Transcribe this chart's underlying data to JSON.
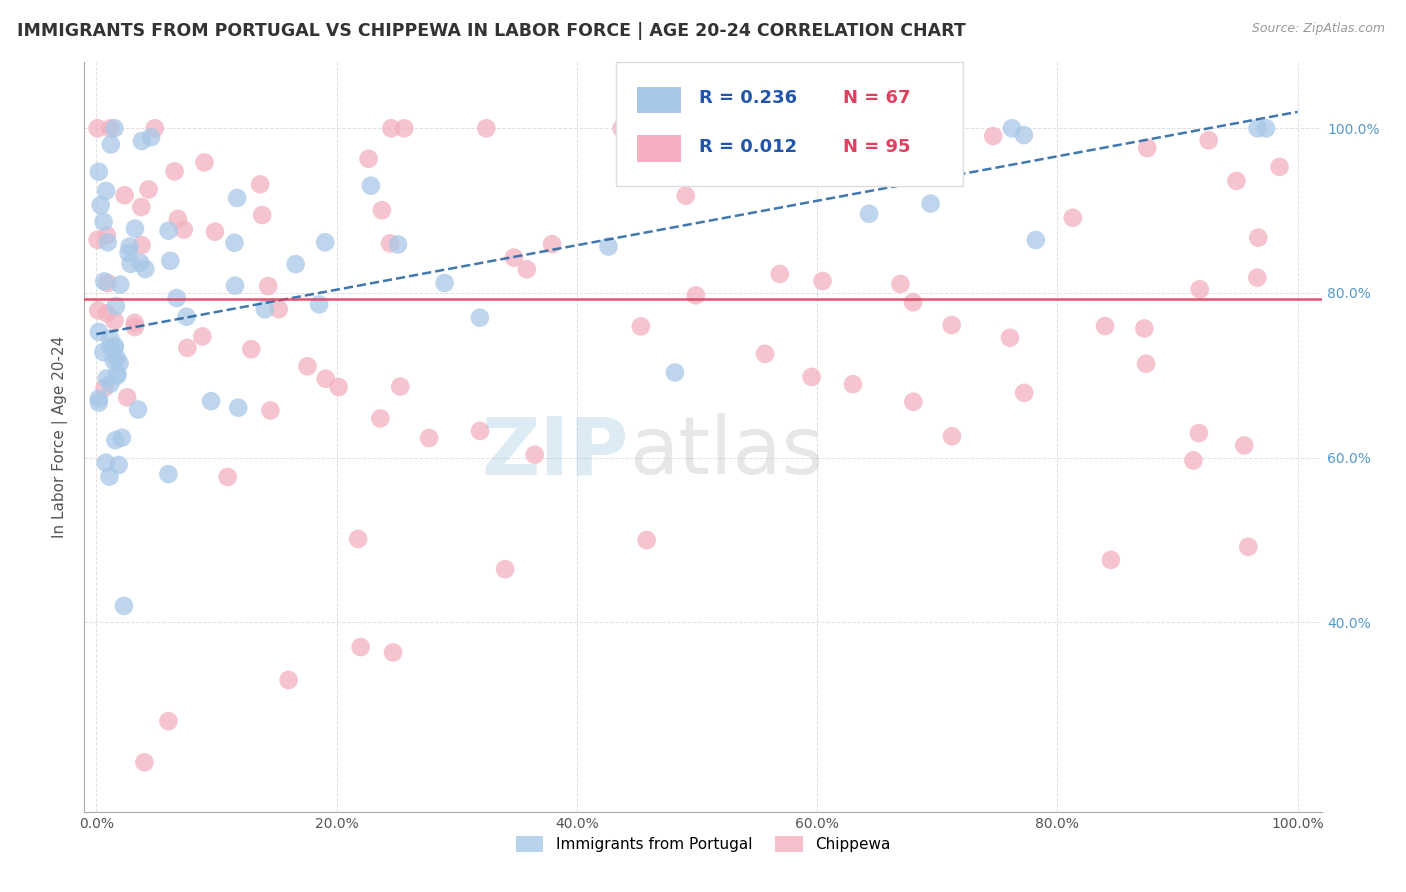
{
  "title": "IMMIGRANTS FROM PORTUGAL VS CHIPPEWA IN LABOR FORCE | AGE 20-24 CORRELATION CHART",
  "source_text": "Source: ZipAtlas.com",
  "ylabel": "In Labor Force | Age 20-24",
  "blue_color": "#a8c8e8",
  "pink_color": "#f4b0c0",
  "trend_blue_color": "#2060a0",
  "trend_pink_color": "#e04060",
  "r_portugal": 0.236,
  "n_portugal": 67,
  "r_chippewa": 0.012,
  "n_chippewa": 95,
  "ytick_labels": [
    "40.0%",
    "60.0%",
    "80.0%",
    "100.0%"
  ],
  "ytick_values": [
    0.4,
    0.6,
    0.8,
    1.0
  ],
  "xtick_labels": [
    "0.0%",
    "20.0%",
    "40.0%",
    "60.0%",
    "80.0%",
    "100.0%"
  ],
  "xtick_values": [
    0.0,
    0.2,
    0.4,
    0.6,
    0.8,
    1.0
  ],
  "xlim": [
    -0.01,
    1.02
  ],
  "ylim": [
    0.17,
    1.08
  ]
}
